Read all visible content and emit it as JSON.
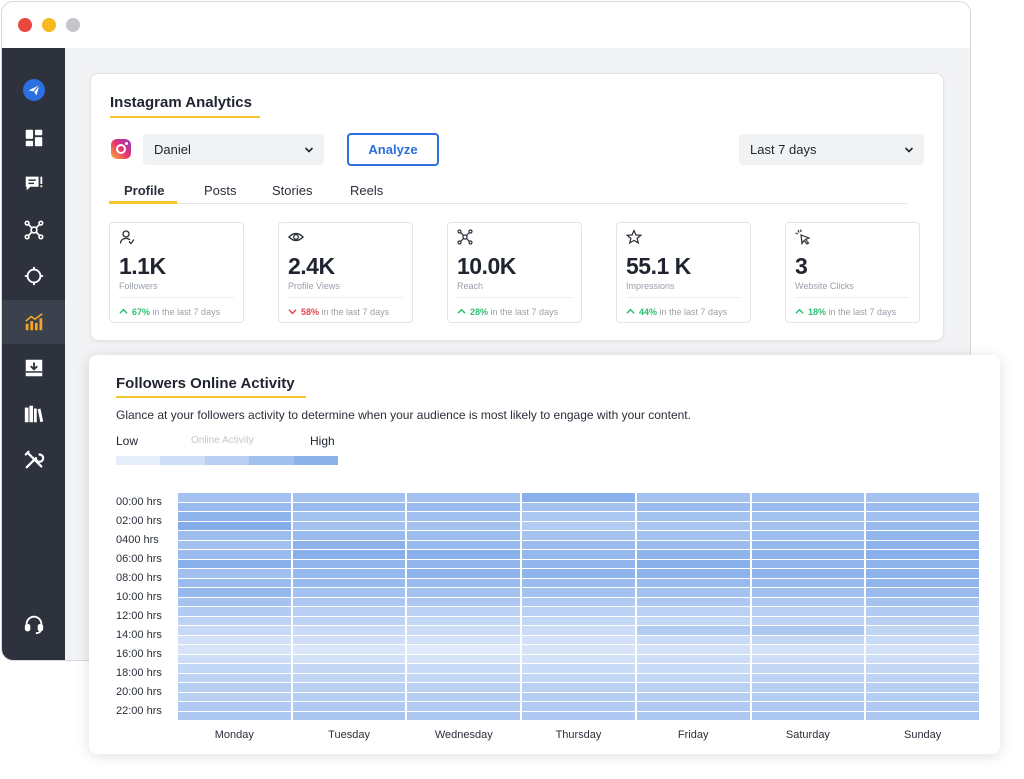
{
  "window": {
    "controls": [
      "close",
      "minimize",
      "maximize"
    ]
  },
  "sidebar": {
    "items": [
      {
        "icon": "paper-plane-logo-icon"
      },
      {
        "icon": "dashboard-grid-icon"
      },
      {
        "icon": "chat-icon"
      },
      {
        "icon": "network-icon"
      },
      {
        "icon": "target-icon"
      },
      {
        "icon": "analytics-chart-icon",
        "active": true
      },
      {
        "icon": "download-tray-icon"
      },
      {
        "icon": "library-icon"
      },
      {
        "icon": "tools-icon"
      },
      {
        "icon": "support-headset-icon"
      }
    ]
  },
  "analytics": {
    "title": "Instagram Analytics",
    "account_select": "Daniel",
    "analyze_label": "Analyze",
    "range_select": "Last 7 days",
    "tabs": [
      {
        "label": "Profile",
        "active": true
      },
      {
        "label": "Posts"
      },
      {
        "label": "Stories"
      },
      {
        "label": "Reels"
      }
    ],
    "metrics": [
      {
        "icon": "user-icon",
        "value": "1.1K",
        "label": "Followers",
        "change": "67%",
        "direction": "up",
        "suffix": "in the last 7 days"
      },
      {
        "icon": "eye-icon",
        "value": "2.4K",
        "label": "Profile Views",
        "change": "58%",
        "direction": "down",
        "suffix": "in the last 7 days"
      },
      {
        "icon": "reach-network-icon",
        "value": "10.0K",
        "label": "Reach",
        "change": "28%",
        "direction": "up",
        "suffix": "in the last 7 days"
      },
      {
        "icon": "star-icon",
        "value": "55.1 K",
        "label": "Impressions",
        "change": "44%",
        "direction": "up",
        "suffix": "in the last 7 days"
      },
      {
        "icon": "cursor-click-icon",
        "value": "3",
        "label": "Website Clicks",
        "change": "18%",
        "direction": "up",
        "suffix": "in the last 7 days"
      }
    ],
    "colors": {
      "accent": "#2b6fe0",
      "underline": "#f5c62a",
      "up": "#2fbf71",
      "down": "#e5484d"
    }
  },
  "activity": {
    "title": "Followers Online Activity",
    "description": "Glance at your followers activity to determine when your audience is most likely to engage with your content.",
    "legend": {
      "low": "Low",
      "middle": "Online Activity",
      "high": "High",
      "scale": [
        "#e6eefb",
        "#cfdef6",
        "#b8cff2",
        "#a2c0ee",
        "#8cb2ea"
      ]
    }
  },
  "chart_data": {
    "type": "heatmap",
    "title": "Followers Online Activity",
    "x": [
      "Monday",
      "Tuesday",
      "Wednesday",
      "Thursday",
      "Friday",
      "Saturday",
      "Sunday"
    ],
    "y_tick_labels": [
      "00:00 hrs",
      "02:00 hrs",
      "0400 hrs",
      "06:00 hrs",
      "08:00 hrs",
      "10:00 hrs",
      "12:00 hrs",
      "14:00 hrs",
      "16:00 hrs",
      "18:00 hrs",
      "20:00 hrs",
      "22:00 hrs"
    ],
    "y": [
      "00:00",
      "01:00",
      "02:00",
      "03:00",
      "04:00",
      "05:00",
      "06:00",
      "07:00",
      "08:00",
      "09:00",
      "10:00",
      "11:00",
      "12:00",
      "13:00",
      "14:00",
      "15:00",
      "16:00",
      "17:00",
      "18:00",
      "19:00",
      "20:00",
      "21:00",
      "22:00",
      "23:00"
    ],
    "values_range": [
      0,
      1
    ],
    "values": [
      [
        0.62,
        0.72,
        0.8,
        0.9,
        0.68,
        0.65,
        0.7,
        0.85,
        0.65,
        0.7,
        0.75,
        0.6,
        0.5,
        0.4,
        0.32,
        0.22,
        0.18,
        0.26,
        0.36,
        0.4,
        0.46,
        0.44,
        0.52,
        0.55
      ],
      [
        0.62,
        0.7,
        0.62,
        0.62,
        0.7,
        0.82,
        0.85,
        0.78,
        0.75,
        0.72,
        0.62,
        0.55,
        0.45,
        0.4,
        0.3,
        0.24,
        0.16,
        0.22,
        0.34,
        0.38,
        0.44,
        0.46,
        0.52,
        0.58
      ],
      [
        0.62,
        0.72,
        0.65,
        0.62,
        0.68,
        0.72,
        0.85,
        0.78,
        0.82,
        0.72,
        0.62,
        0.55,
        0.42,
        0.36,
        0.28,
        0.22,
        0.12,
        0.18,
        0.3,
        0.36,
        0.42,
        0.46,
        0.5,
        0.55
      ],
      [
        0.85,
        0.62,
        0.55,
        0.5,
        0.6,
        0.7,
        0.75,
        0.78,
        0.8,
        0.7,
        0.62,
        0.52,
        0.42,
        0.36,
        0.28,
        0.22,
        0.18,
        0.22,
        0.3,
        0.36,
        0.42,
        0.46,
        0.5,
        0.52
      ],
      [
        0.62,
        0.7,
        0.62,
        0.58,
        0.62,
        0.7,
        0.8,
        0.85,
        0.82,
        0.72,
        0.62,
        0.55,
        0.42,
        0.36,
        0.5,
        0.3,
        0.22,
        0.26,
        0.3,
        0.36,
        0.42,
        0.46,
        0.52,
        0.55
      ],
      [
        0.62,
        0.7,
        0.62,
        0.62,
        0.68,
        0.75,
        0.82,
        0.78,
        0.8,
        0.72,
        0.65,
        0.55,
        0.45,
        0.4,
        0.55,
        0.35,
        0.22,
        0.26,
        0.34,
        0.4,
        0.45,
        0.48,
        0.52,
        0.55
      ],
      [
        0.62,
        0.7,
        0.65,
        0.72,
        0.78,
        0.82,
        0.85,
        0.8,
        0.82,
        0.78,
        0.72,
        0.6,
        0.5,
        0.44,
        0.38,
        0.3,
        0.22,
        0.26,
        0.34,
        0.4,
        0.45,
        0.48,
        0.52,
        0.55
      ]
    ]
  }
}
